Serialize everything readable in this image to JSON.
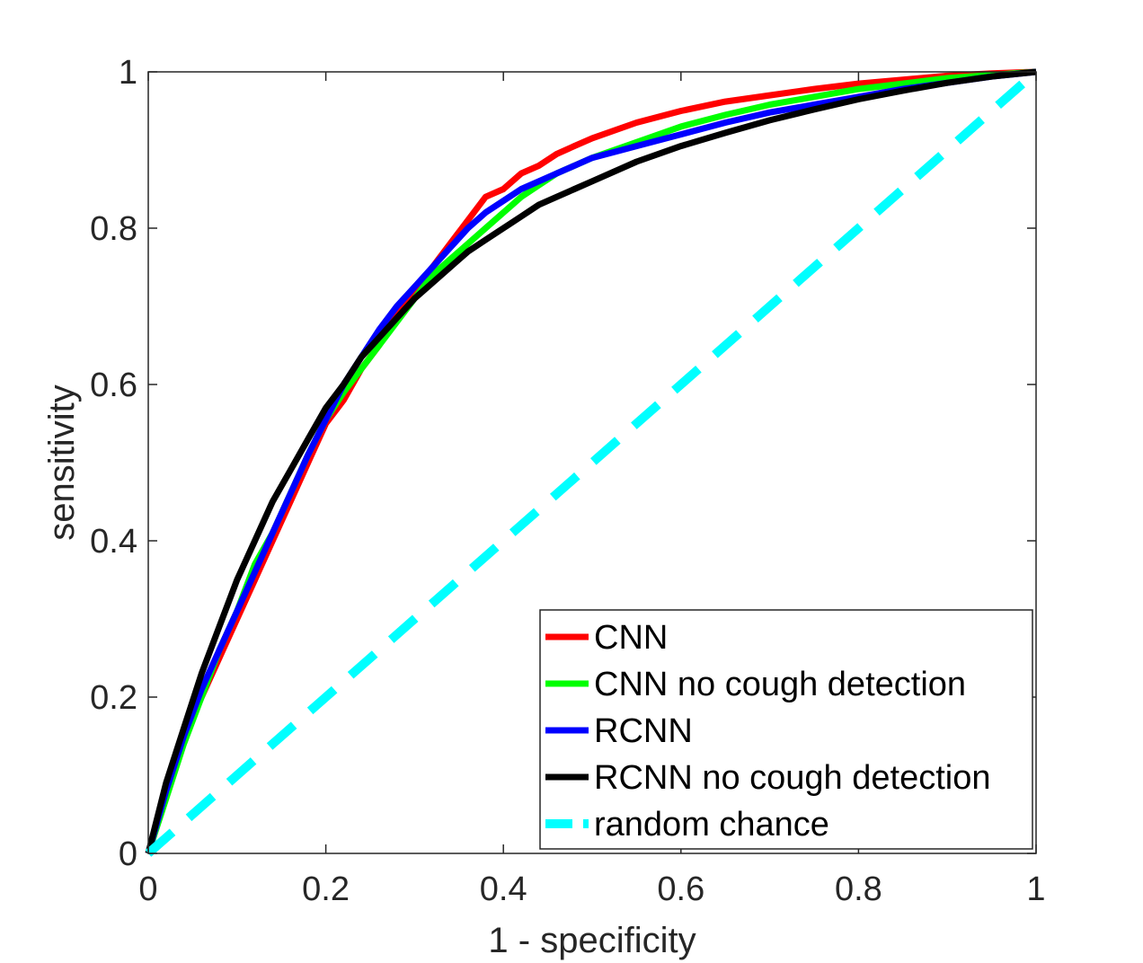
{
  "chart_data": {
    "type": "line",
    "title": "",
    "xlabel": "1 - specificity",
    "ylabel": "sensitivity",
    "xlim": [
      0,
      1
    ],
    "ylim": [
      0,
      1
    ],
    "xticks": [
      0,
      0.2,
      0.4,
      0.6,
      0.8,
      1
    ],
    "yticks": [
      0,
      0.2,
      0.4,
      0.6,
      0.8,
      1
    ],
    "xtick_labels": [
      "0",
      "0.2",
      "0.4",
      "0.6",
      "0.8",
      "1"
    ],
    "ytick_labels": [
      "0",
      "0.2",
      "0.4",
      "0.6",
      "0.8",
      "1"
    ],
    "grid": false,
    "legend_position": "bottom-right",
    "series": [
      {
        "name": "CNN",
        "color": "#ff0000",
        "style": "solid",
        "x": [
          0,
          0.02,
          0.04,
          0.06,
          0.08,
          0.1,
          0.12,
          0.14,
          0.16,
          0.18,
          0.2,
          0.22,
          0.24,
          0.26,
          0.28,
          0.3,
          0.32,
          0.34,
          0.36,
          0.38,
          0.4,
          0.42,
          0.44,
          0.46,
          0.48,
          0.5,
          0.55,
          0.6,
          0.65,
          0.7,
          0.75,
          0.8,
          0.85,
          0.9,
          0.95,
          1.0
        ],
        "y": [
          0,
          0.08,
          0.15,
          0.2,
          0.25,
          0.3,
          0.35,
          0.4,
          0.45,
          0.5,
          0.55,
          0.58,
          0.62,
          0.65,
          0.69,
          0.72,
          0.75,
          0.78,
          0.81,
          0.84,
          0.85,
          0.87,
          0.88,
          0.895,
          0.905,
          0.915,
          0.935,
          0.95,
          0.962,
          0.97,
          0.978,
          0.985,
          0.99,
          0.995,
          0.998,
          1.0
        ]
      },
      {
        "name": "CNN no cough detection",
        "color": "#00ff00",
        "style": "solid",
        "x": [
          0,
          0.02,
          0.04,
          0.06,
          0.08,
          0.1,
          0.12,
          0.14,
          0.16,
          0.18,
          0.2,
          0.22,
          0.24,
          0.26,
          0.28,
          0.3,
          0.32,
          0.34,
          0.36,
          0.38,
          0.4,
          0.42,
          0.44,
          0.46,
          0.48,
          0.5,
          0.55,
          0.6,
          0.65,
          0.7,
          0.75,
          0.8,
          0.85,
          0.9,
          0.95,
          1.0
        ],
        "y": [
          0,
          0.07,
          0.14,
          0.2,
          0.26,
          0.31,
          0.37,
          0.41,
          0.46,
          0.51,
          0.555,
          0.59,
          0.62,
          0.65,
          0.68,
          0.71,
          0.74,
          0.76,
          0.78,
          0.8,
          0.82,
          0.84,
          0.855,
          0.87,
          0.88,
          0.89,
          0.91,
          0.93,
          0.945,
          0.958,
          0.968,
          0.978,
          0.985,
          0.992,
          0.996,
          1.0
        ]
      },
      {
        "name": "RCNN",
        "color": "#0000ff",
        "style": "solid",
        "x": [
          0,
          0.02,
          0.04,
          0.06,
          0.08,
          0.1,
          0.12,
          0.14,
          0.16,
          0.18,
          0.2,
          0.22,
          0.24,
          0.26,
          0.28,
          0.3,
          0.32,
          0.34,
          0.36,
          0.38,
          0.4,
          0.42,
          0.44,
          0.46,
          0.48,
          0.5,
          0.55,
          0.6,
          0.65,
          0.7,
          0.75,
          0.8,
          0.85,
          0.9,
          0.95,
          1.0
        ],
        "y": [
          0,
          0.08,
          0.15,
          0.21,
          0.26,
          0.31,
          0.36,
          0.41,
          0.46,
          0.51,
          0.555,
          0.6,
          0.635,
          0.67,
          0.7,
          0.725,
          0.75,
          0.775,
          0.8,
          0.82,
          0.835,
          0.85,
          0.86,
          0.87,
          0.88,
          0.89,
          0.905,
          0.92,
          0.935,
          0.948,
          0.958,
          0.968,
          0.978,
          0.986,
          0.994,
          1.0
        ]
      },
      {
        "name": "RCNN no cough detection",
        "color": "#000000",
        "style": "solid",
        "x": [
          0,
          0.02,
          0.04,
          0.06,
          0.08,
          0.1,
          0.12,
          0.14,
          0.16,
          0.18,
          0.2,
          0.22,
          0.24,
          0.26,
          0.28,
          0.3,
          0.32,
          0.34,
          0.36,
          0.38,
          0.4,
          0.42,
          0.44,
          0.46,
          0.48,
          0.5,
          0.55,
          0.6,
          0.65,
          0.7,
          0.75,
          0.8,
          0.85,
          0.9,
          0.95,
          1.0
        ],
        "y": [
          0,
          0.09,
          0.16,
          0.23,
          0.29,
          0.35,
          0.4,
          0.45,
          0.49,
          0.53,
          0.57,
          0.6,
          0.635,
          0.66,
          0.685,
          0.71,
          0.73,
          0.75,
          0.77,
          0.785,
          0.8,
          0.815,
          0.83,
          0.84,
          0.85,
          0.86,
          0.885,
          0.905,
          0.922,
          0.938,
          0.952,
          0.965,
          0.976,
          0.986,
          0.994,
          1.0
        ]
      },
      {
        "name": "random chance",
        "color": "#00ffff",
        "style": "dashed",
        "x": [
          0,
          1
        ],
        "y": [
          0,
          1
        ]
      }
    ]
  }
}
